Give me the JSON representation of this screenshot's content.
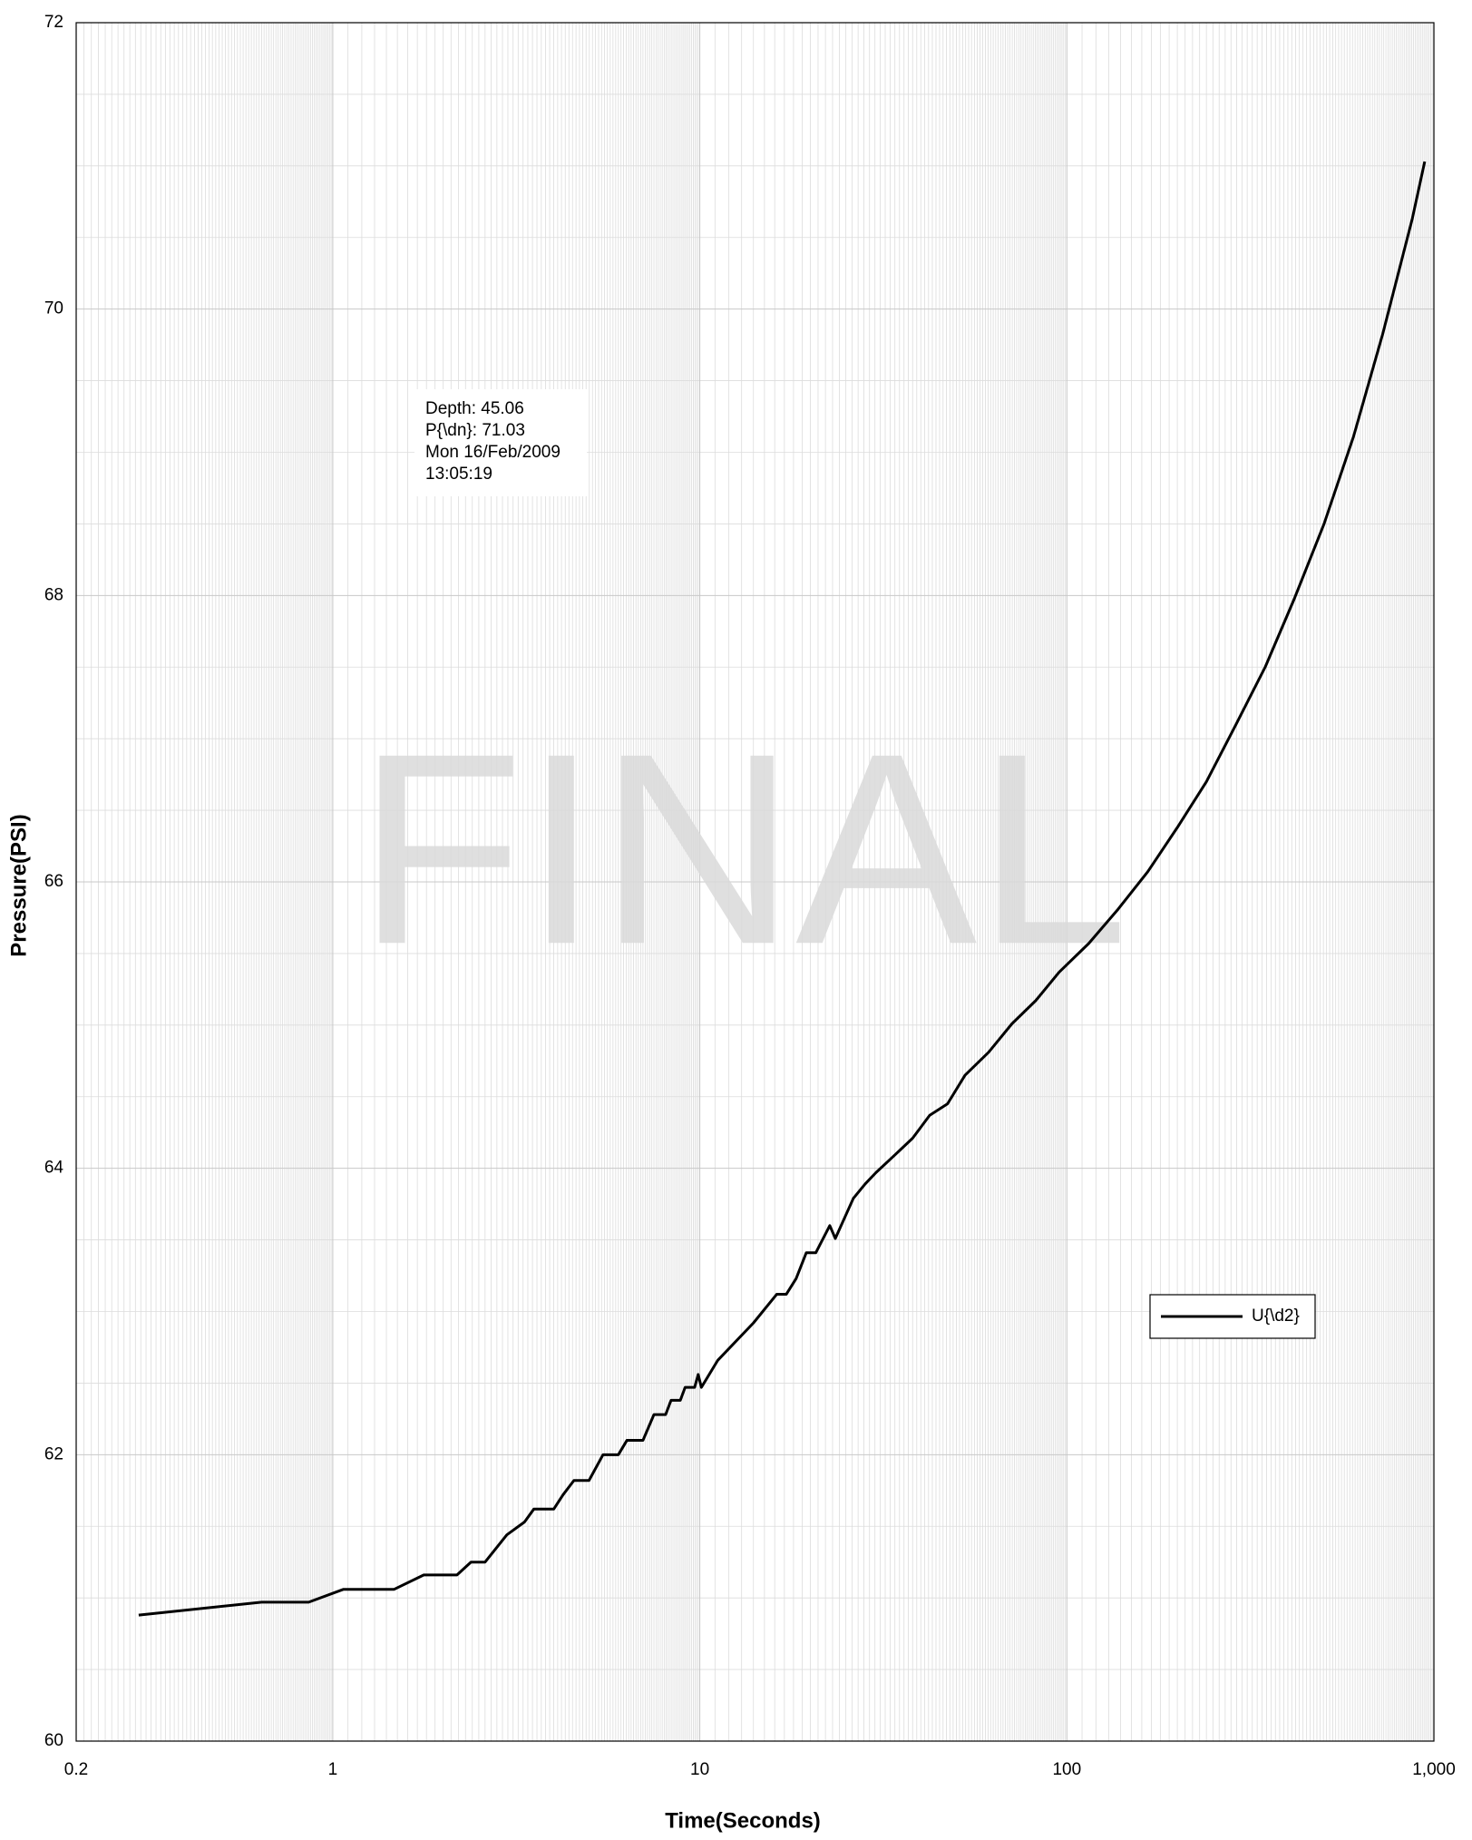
{
  "chart_data": {
    "type": "line",
    "xlabel": "Time(Seconds)",
    "ylabel": "Pressure(PSI)",
    "watermark": "FINAL",
    "annotation": [
      "Depth: 45.06",
      "P{\\dn}: 71.03",
      "Mon 16/Feb/2009",
      "13:05:19"
    ],
    "xscale": "log",
    "grid": true,
    "legend": "lower right",
    "xlim": [
      0.2,
      1000
    ],
    "xticks": [
      0.2,
      1,
      10,
      100,
      {
        "value": 1000,
        "label": "1,000"
      }
    ],
    "ylim": [
      60,
      72
    ],
    "yticks": [
      60,
      62,
      64,
      66,
      68,
      70,
      72
    ],
    "x": [
      0.296,
      0.64,
      0.86,
      1.07,
      1.47,
      1.77,
      2.18,
      2.38,
      2.6,
      2.98,
      3.33,
      3.53,
      4.0,
      4.24,
      4.54,
      4.99,
      5.45,
      6.0,
      6.33,
      7.0,
      7.5,
      8.07,
      8.35,
      8.85,
      9.12,
      9.68,
      9.9,
      10.1,
      11.2,
      14.0,
      16.2,
      17.2,
      18.3,
      19.5,
      20.7,
      22.6,
      23.4,
      26.2,
      28.2,
      30.2,
      33.9,
      38,
      42.3,
      47.3,
      52.8,
      61.2,
      70.9,
      82.2,
      95.3,
      114.7,
      138,
      166,
      200,
      240,
      289,
      347,
      417,
      502,
      604,
      726,
      873,
      944
    ],
    "series": [
      {
        "name": "U{\\d2}",
        "color": "#000000",
        "values": [
          60.88,
          60.97,
          60.97,
          61.06,
          61.06,
          61.16,
          61.16,
          61.25,
          61.25,
          61.44,
          61.53,
          61.62,
          61.62,
          61.72,
          61.82,
          61.82,
          62.0,
          62.0,
          62.1,
          62.1,
          62.28,
          62.28,
          62.38,
          62.38,
          62.47,
          62.47,
          62.56,
          62.47,
          62.66,
          62.92,
          63.12,
          63.12,
          63.23,
          63.41,
          63.41,
          63.6,
          63.51,
          63.79,
          63.89,
          63.97,
          64.09,
          64.21,
          64.37,
          64.45,
          64.65,
          64.81,
          65.01,
          65.17,
          65.37,
          65.57,
          65.81,
          66.07,
          66.38,
          66.7,
          67.1,
          67.5,
          67.98,
          68.5,
          69.11,
          69.83,
          70.63,
          71.03
        ]
      }
    ]
  }
}
